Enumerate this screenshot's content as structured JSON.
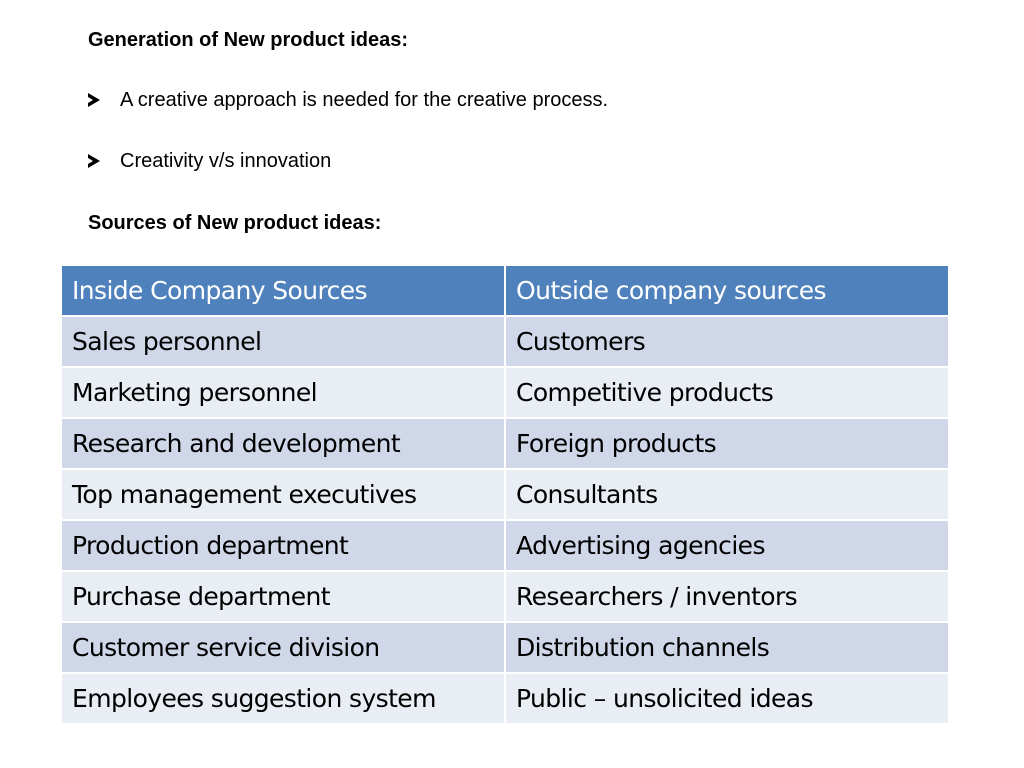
{
  "slide": {
    "generation_heading": "Generation of New product ideas:",
    "bullets": [
      "A creative approach is needed for the creative process.",
      "Creativity v/s innovation"
    ],
    "sources_heading": "Sources of New product ideas:"
  },
  "table": {
    "headers": [
      "Inside Company Sources",
      "Outside company sources"
    ],
    "rows": [
      [
        "Sales personnel",
        "Customers"
      ],
      [
        "Marketing personnel",
        "Competitive products"
      ],
      [
        "Research and development",
        "Foreign products"
      ],
      [
        "Top management executives",
        "Consultants"
      ],
      [
        "Production department",
        "Advertising agencies"
      ],
      [
        "Purchase department",
        "Researchers / inventors"
      ],
      [
        "Customer service division",
        "Distribution channels"
      ],
      [
        "Employees suggestion system",
        "Public – unsolicited ideas"
      ]
    ]
  },
  "colors": {
    "header_bg": "#4f81bd",
    "row_odd_bg": "#cfd7e8",
    "row_even_bg": "#e9edf4"
  },
  "icons": {
    "bullet": "arrowhead-bullet-icon"
  }
}
